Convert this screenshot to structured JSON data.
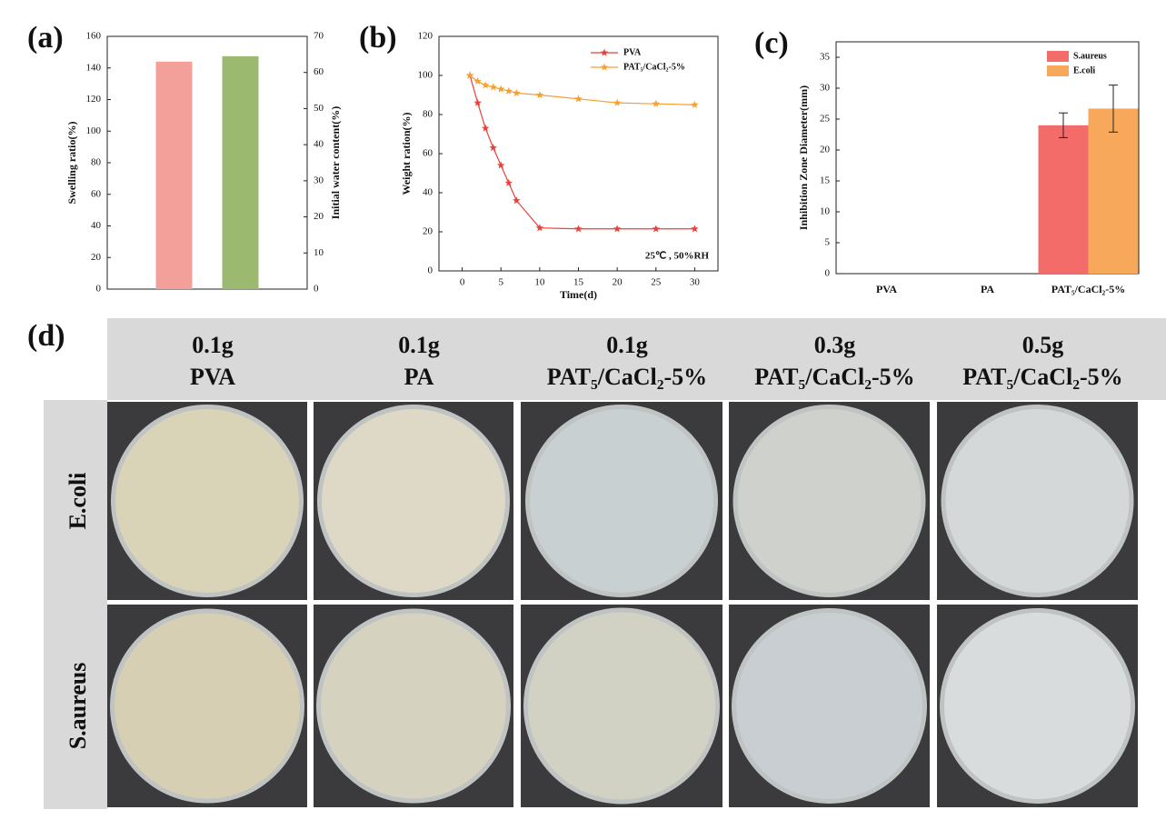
{
  "chart_data": [
    {
      "type": "bar",
      "label": "(a)",
      "ylabel": "Swelling ratio(%)",
      "y2label": "Initial water content(%)",
      "categories": [
        null
      ],
      "series": [
        {
          "color": "#f4a09a",
          "values": [
            144
          ]
        },
        {
          "color": "#9cba6f",
          "values": [
            64.5
          ],
          "axis": "y2"
        }
      ],
      "ylim": [
        0,
        160
      ],
      "yticks": [
        0,
        20,
        40,
        60,
        80,
        100,
        120,
        140,
        160
      ],
      "y2lim": [
        0,
        70
      ],
      "y2ticks": [
        0,
        10,
        20,
        30,
        40,
        50,
        60,
        70
      ]
    },
    {
      "type": "line",
      "label": "(b)",
      "xlabel": "Time(d)",
      "ylabel": "Weight ration(%)",
      "annotation": "25℃ , 50%RH",
      "x": [
        1,
        2,
        3,
        4,
        5,
        6,
        7,
        10,
        15,
        20,
        25,
        30
      ],
      "series": [
        {
          "name": "PVA",
          "color": "#e8403a",
          "values": [
            100,
            86,
            73,
            63,
            54,
            45,
            36,
            22,
            21.5,
            21.5,
            21.5,
            21.5
          ]
        },
        {
          "name": "PAT₅/CaCl₂-5%",
          "color": "#f5a030",
          "values": [
            100,
            97,
            95,
            94,
            93,
            92,
            91,
            90,
            88,
            86,
            85.5,
            85
          ]
        }
      ],
      "xlim": [
        -3,
        33
      ],
      "xticks": [
        0,
        5,
        10,
        15,
        20,
        25,
        30
      ],
      "ylim": [
        0,
        120
      ],
      "yticks": [
        0,
        20,
        40,
        60,
        80,
        100,
        120
      ]
    },
    {
      "type": "bar",
      "label": "(c)",
      "ylabel": "Inhibition Zone Diameter(mm)",
      "categories": [
        "PVA",
        "PA",
        "PAT₅/CaCl₂-5%"
      ],
      "series": [
        {
          "name": "S.aureus",
          "color": "#f46c6a",
          "values": [
            0,
            0,
            24
          ],
          "errors": [
            null,
            null,
            2
          ]
        },
        {
          "name": "E.coli",
          "color": "#f8a85a",
          "values": [
            0,
            0,
            26.7
          ],
          "errors": [
            null,
            null,
            3.8
          ]
        }
      ],
      "ylim": [
        0,
        37.5
      ],
      "yticks": [
        0,
        5,
        10,
        15,
        20,
        25,
        30,
        35
      ]
    }
  ],
  "panel_d": {
    "label": "(d)",
    "columns": [
      [
        "0.1g",
        "PVA"
      ],
      [
        "0.1g",
        "PA"
      ],
      [
        "0.1g",
        "PAT₅/CaCl₂-5%"
      ],
      [
        "0.3g",
        "PAT₅/CaCl₂-5%"
      ],
      [
        "0.5g",
        "PAT₅/CaCl₂-5%"
      ]
    ],
    "rows": [
      "E.coli",
      "S.aureus"
    ]
  }
}
